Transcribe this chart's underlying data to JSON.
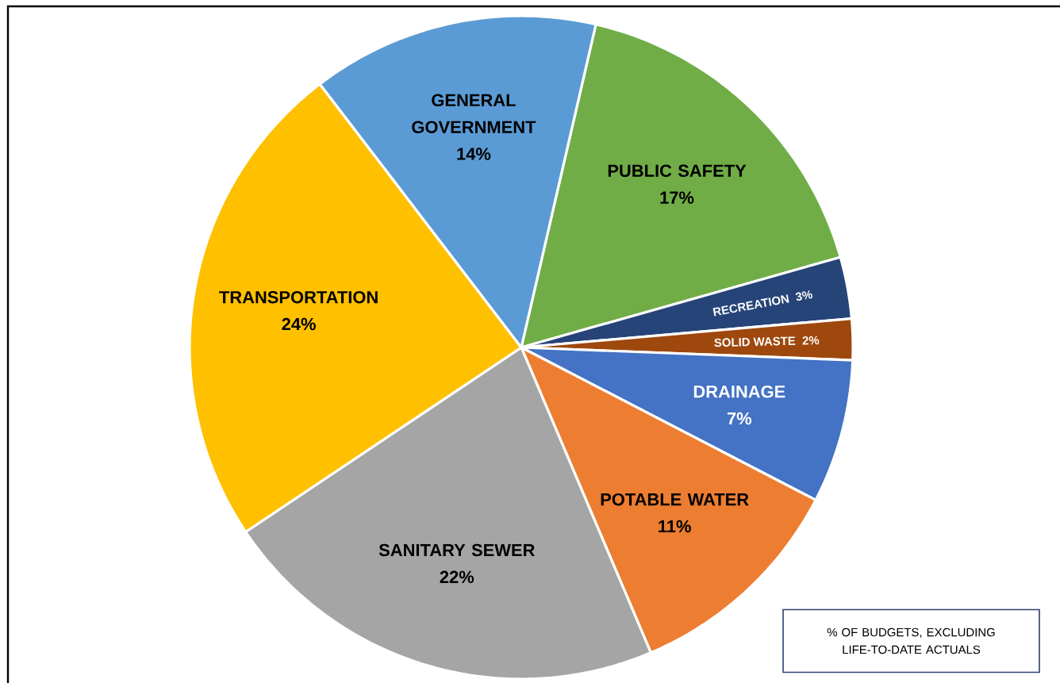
{
  "chart_data": {
    "type": "pie",
    "categories": [
      "PUBLIC SAFETY",
      "RECREATION",
      "SOLID WASTE",
      "DRAINAGE",
      "POTABLE WATER",
      "SANITARY SEWER",
      "TRANSPORTATION",
      "GENERAL GOVERNMENT"
    ],
    "values": [
      17,
      3,
      2,
      7,
      11,
      22,
      24,
      14
    ],
    "colors": [
      "#70ad47",
      "#264478",
      "#9e480e",
      "#4472c4",
      "#ed7d31",
      "#a5a5a5",
      "#ffc000",
      "#5b9bd5"
    ],
    "value_labels": [
      "17%",
      "3%",
      "2%",
      "7%",
      "11%",
      "22%",
      "24%",
      "14%"
    ],
    "annotations": [
      "% OF BUDGETS, EXCLUDING LIFE-TO-DATE ACTUALS"
    ]
  }
}
